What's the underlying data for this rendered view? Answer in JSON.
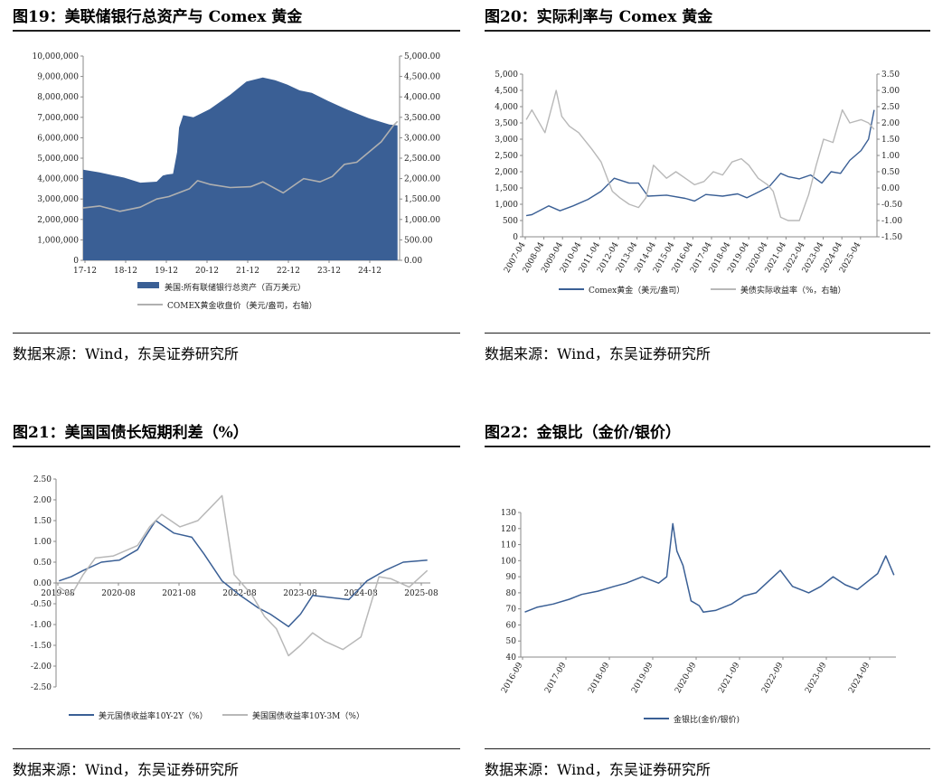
{
  "panels": [
    {
      "title": "图19：美联储银行总资产与 Comex 黄金",
      "source": "数据来源：Wind，东吴证券研究所",
      "chart_data": {
        "type": "area",
        "x_ticks": [
          "17-12",
          "18-12",
          "19-12",
          "20-12",
          "21-12",
          "22-12",
          "23-12",
          "24-12"
        ],
        "yleft_ticks": [
          "10,000,000",
          "9,000,000",
          "8,000,000",
          "7,000,000",
          "6,000,000",
          "5,000,000",
          "4,000,000",
          "3,000,000",
          "2,000,000",
          "1,000,000",
          "0"
        ],
        "yright_ticks": [
          "5,000.00",
          "4,500.00",
          "4,000.00",
          "3,500.00",
          "3,000.00",
          "2,500.00",
          "2,000.00",
          "1,500.00",
          "1,000.00",
          "500.00",
          "0.00"
        ],
        "ylim_left": [
          0,
          10000000
        ],
        "ylim_right": [
          0,
          5000
        ],
        "series": [
          {
            "name": "美国:所有联储银行总资产（百万美元）",
            "color": "#3a5f95",
            "axis": "left",
            "x": [
              2017.9,
              2018.3,
              2018.9,
              2019.3,
              2019.7,
              2019.85,
              2019.95,
              2020.1,
              2020.2,
              2020.25,
              2020.35,
              2020.6,
              2021.0,
              2021.5,
              2021.9,
              2022.3,
              2022.6,
              2022.9,
              2023.2,
              2023.5,
              2023.9,
              2024.4,
              2024.9,
              2025.4,
              2025.6
            ],
            "values": [
              4440000,
              4300000,
              4050000,
              3800000,
              3850000,
              4150000,
              4200000,
              4240000,
              5300000,
              6500000,
              7100000,
              7000000,
              7400000,
              8100000,
              8750000,
              8950000,
              8820000,
              8600000,
              8320000,
              8200000,
              7800000,
              7350000,
              6950000,
              6650000,
              6600000
            ]
          },
          {
            "name": "COMEX黄金收盘价（美元/盎司，右轴）",
            "color": "#b0b0b0",
            "axis": "right",
            "x": [
              2017.9,
              2018.3,
              2018.8,
              2019.3,
              2019.7,
              2020.0,
              2020.5,
              2020.7,
              2021.0,
              2021.5,
              2022.0,
              2022.3,
              2022.8,
              2023.3,
              2023.7,
              2024.0,
              2024.3,
              2024.6,
              2024.9,
              2025.2,
              2025.5,
              2025.6
            ],
            "values": [
              1280,
              1330,
              1200,
              1300,
              1500,
              1560,
              1750,
              1950,
              1860,
              1780,
              1800,
              1920,
              1650,
              2000,
              1920,
              2050,
              2350,
              2400,
              2650,
              2900,
              3300,
              3400
            ]
          }
        ]
      }
    },
    {
      "title": "图20：实际利率与 Comex 黄金",
      "source": "数据来源：Wind，东吴证券研究所",
      "chart_data": {
        "type": "line",
        "x_ticks": [
          "2007-04",
          "2008-04",
          "2009-04",
          "2010-04",
          "2011-04",
          "2012-04",
          "2013-04",
          "2014-04",
          "2015-04",
          "2016-04",
          "2017-04",
          "2018-04",
          "2019-04",
          "2020-04",
          "2021-04",
          "2022-04",
          "2023-04",
          "2024-04",
          "2025-04"
        ],
        "yleft_ticks": [
          "5,000",
          "4,500",
          "4,000",
          "3,500",
          "3,000",
          "2,500",
          "2,000",
          "1,500",
          "1,000",
          "500",
          "0"
        ],
        "yright_ticks": [
          "3.50",
          "3.00",
          "2.50",
          "2.00",
          "1.50",
          "1.00",
          "0.50",
          "0.00",
          "-0.50",
          "-1.00",
          "-1.50"
        ],
        "ylim_left": [
          0,
          5000
        ],
        "ylim_right": [
          -1.5,
          3.5
        ],
        "series": [
          {
            "name": "Comex黄金（美元/盎司）",
            "color": "#3a5f95",
            "axis": "left",
            "x": [
              2007.0,
              2007.3,
              2008.2,
              2008.8,
              2009.5,
              2010.3,
              2011.0,
              2011.7,
              2012.5,
              2013.0,
              2013.5,
              2014.5,
              2015.5,
              2016.0,
              2016.6,
              2017.5,
              2018.3,
              2018.8,
              2019.5,
              2020.0,
              2020.6,
              2021.0,
              2021.6,
              2022.2,
              2022.8,
              2023.3,
              2023.8,
              2024.3,
              2024.9,
              2025.3,
              2025.6
            ],
            "values": [
              650,
              680,
              950,
              800,
              950,
              1150,
              1400,
              1800,
              1650,
              1650,
              1250,
              1280,
              1180,
              1100,
              1300,
              1250,
              1320,
              1200,
              1400,
              1550,
              1950,
              1850,
              1780,
              1900,
              1650,
              2000,
              1950,
              2350,
              2650,
              3000,
              3900
            ]
          },
          {
            "name": "美债实际收益率（%，右轴）",
            "color": "#b8b8b8",
            "axis": "right",
            "x": [
              2007.0,
              2007.3,
              2008.0,
              2008.6,
              2008.9,
              2009.3,
              2009.8,
              2010.5,
              2011.0,
              2011.6,
              2012.0,
              2012.5,
              2013.0,
              2013.4,
              2013.8,
              2014.5,
              2015.0,
              2015.5,
              2016.0,
              2016.5,
              2017.0,
              2017.5,
              2018.0,
              2018.5,
              2018.9,
              2019.4,
              2019.9,
              2020.2,
              2020.6,
              2021.0,
              2021.6,
              2022.1,
              2022.5,
              2022.9,
              2023.4,
              2023.9,
              2024.3,
              2024.9,
              2025.3,
              2025.6
            ],
            "values": [
              2.1,
              2.4,
              1.7,
              3.0,
              2.2,
              1.9,
              1.7,
              1.2,
              0.8,
              -0.1,
              -0.3,
              -0.5,
              -0.6,
              -0.3,
              0.7,
              0.3,
              0.5,
              0.3,
              0.1,
              0.2,
              0.5,
              0.4,
              0.8,
              0.9,
              0.7,
              0.3,
              0.1,
              -0.1,
              -0.9,
              -1.0,
              -1.0,
              -0.2,
              0.7,
              1.5,
              1.4,
              2.4,
              2.0,
              2.1,
              2.0,
              1.8
            ]
          }
        ]
      }
    },
    {
      "title": "图21：美国国债长短期利差（%）",
      "source": "数据来源：Wind，东吴证券研究所",
      "chart_data": {
        "type": "line",
        "x_ticks": [
          "2019-08",
          "2020-08",
          "2021-08",
          "2022-08",
          "2023-08",
          "2024-08",
          "2025-08"
        ],
        "y_ticks": [
          "2.50",
          "2.00",
          "1.50",
          "1.00",
          "0.50",
          "0.00",
          "-0.50",
          "-1.00",
          "-1.50",
          "-2.00",
          "-2.50"
        ],
        "ylim": [
          -2.5,
          2.5
        ],
        "series": [
          {
            "name": "美元国债收益率10Y-2Y（%）",
            "color": "#3a5f95",
            "x": [
              2019.6,
              2019.8,
              2020.0,
              2020.3,
              2020.6,
              2020.9,
              2021.0,
              2021.2,
              2021.5,
              2021.8,
              2022.0,
              2022.3,
              2022.6,
              2022.9,
              2023.1,
              2023.4,
              2023.6,
              2023.8,
              2024.1,
              2024.4,
              2024.7,
              2025.0,
              2025.3,
              2025.7
            ],
            "values": [
              0.05,
              0.15,
              0.3,
              0.5,
              0.55,
              0.8,
              1.05,
              1.5,
              1.2,
              1.1,
              0.7,
              0.05,
              -0.3,
              -0.6,
              -0.75,
              -1.05,
              -0.75,
              -0.3,
              -0.35,
              -0.4,
              0.05,
              0.3,
              0.5,
              0.55
            ]
          },
          {
            "name": "美国国债收益率10Y-3M（%）",
            "color": "#b8b8b8",
            "x": [
              2019.6,
              2019.8,
              2020.0,
              2020.2,
              2020.5,
              2020.9,
              2021.1,
              2021.3,
              2021.6,
              2021.9,
              2022.1,
              2022.3,
              2022.5,
              2022.8,
              2023.0,
              2023.2,
              2023.4,
              2023.6,
              2023.8,
              2024.0,
              2024.3,
              2024.6,
              2024.9,
              2025.1,
              2025.4,
              2025.7
            ],
            "values": [
              -0.1,
              -0.3,
              0.2,
              0.6,
              0.65,
              0.9,
              1.35,
              1.65,
              1.35,
              1.5,
              1.8,
              2.1,
              0.2,
              -0.3,
              -0.8,
              -1.1,
              -1.75,
              -1.5,
              -1.2,
              -1.4,
              -1.6,
              -1.3,
              0.15,
              0.1,
              -0.1,
              0.3
            ]
          }
        ]
      }
    },
    {
      "title": "图22：金银比（金价/银价）",
      "source": "数据来源：Wind，东吴证券研究所",
      "chart_data": {
        "type": "line",
        "x_ticks": [
          "2016-09",
          "2017-09",
          "2018-09",
          "2019-09",
          "2020-09",
          "2021-09",
          "2022-09",
          "2023-09",
          "2024-09"
        ],
        "y_ticks": [
          "130",
          "120",
          "110",
          "100",
          "90",
          "80",
          "70",
          "60",
          "50",
          "40"
        ],
        "ylim": [
          40,
          130
        ],
        "series": [
          {
            "name": "金银比(金价/银价)",
            "color": "#3a5f95",
            "x": [
              2016.6,
              2016.9,
              2017.3,
              2017.7,
              2018.0,
              2018.4,
              2018.8,
              2019.1,
              2019.5,
              2019.9,
              2020.1,
              2020.25,
              2020.35,
              2020.5,
              2020.7,
              2020.9,
              2021.0,
              2021.3,
              2021.7,
              2022.0,
              2022.3,
              2022.6,
              2022.9,
              2023.2,
              2023.6,
              2023.9,
              2024.2,
              2024.5,
              2024.8,
              2025.1,
              2025.3,
              2025.5,
              2025.7
            ],
            "values": [
              68,
              71,
              73,
              76,
              79,
              81,
              84,
              86,
              90,
              86,
              90,
              123,
              106,
              97,
              75,
              72,
              68,
              69,
              73,
              78,
              80,
              87,
              94,
              84,
              80,
              84,
              90,
              85,
              82,
              88,
              92,
              103,
              91
            ]
          }
        ]
      }
    }
  ]
}
